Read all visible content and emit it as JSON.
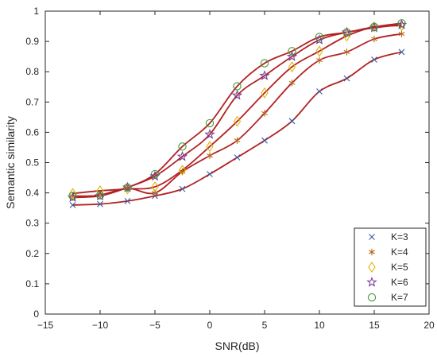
{
  "chart_data": {
    "type": "line",
    "xlabel": "SNR(dB)",
    "ylabel": "Semantic similarity",
    "xlim": [
      -15,
      20
    ],
    "ylim": [
      0,
      1
    ],
    "xticks": [
      -15,
      -10,
      -5,
      0,
      5,
      10,
      15,
      20
    ],
    "yticks": [
      0,
      0.1,
      0.2,
      0.3,
      0.4,
      0.5,
      0.6,
      0.7,
      0.8,
      0.9,
      1
    ],
    "xtick_labels": [
      "−15",
      "−10",
      "−5",
      "0",
      "5",
      "10",
      "15",
      "20"
    ],
    "ytick_labels": [
      "0",
      "0.1",
      "0.2",
      "0.3",
      "0.4",
      "0.5",
      "0.6",
      "0.7",
      "0.8",
      "0.9",
      "1"
    ],
    "grid": false,
    "legend_position": "bottom-right",
    "fit_line_color": "#b22222",
    "x": [
      -12.5,
      -10,
      -7.5,
      -5,
      -2.5,
      0,
      2.5,
      5,
      7.5,
      10,
      12.5,
      15,
      17.5
    ],
    "series": [
      {
        "name": "K=3",
        "marker": "x",
        "color": "#3a5a9a",
        "values": [
          0.36,
          0.363,
          0.373,
          0.39,
          0.413,
          0.462,
          0.517,
          0.573,
          0.637,
          0.735,
          0.778,
          0.84,
          0.865
        ]
      },
      {
        "name": "K=4",
        "marker": "asterisk",
        "color": "#b5651d",
        "values": [
          0.385,
          0.393,
          0.415,
          0.4,
          0.47,
          0.523,
          0.573,
          0.663,
          0.763,
          0.838,
          0.865,
          0.908,
          0.925
        ]
      },
      {
        "name": "K=5",
        "marker": "diamond",
        "color": "#e0b400",
        "values": [
          0.398,
          0.407,
          0.413,
          0.42,
          0.475,
          0.553,
          0.636,
          0.73,
          0.816,
          0.868,
          0.918,
          0.948,
          0.952
        ]
      },
      {
        "name": "K=6",
        "marker": "star",
        "color": "#7a3d9a",
        "values": [
          0.385,
          0.39,
          0.418,
          0.455,
          0.52,
          0.593,
          0.722,
          0.787,
          0.85,
          0.905,
          0.93,
          0.945,
          0.955
        ]
      },
      {
        "name": "K=7",
        "marker": "circle",
        "color": "#3f9a36",
        "values": [
          0.39,
          0.392,
          0.418,
          0.462,
          0.553,
          0.63,
          0.752,
          0.828,
          0.868,
          0.915,
          0.93,
          0.948,
          0.96
        ]
      }
    ]
  }
}
